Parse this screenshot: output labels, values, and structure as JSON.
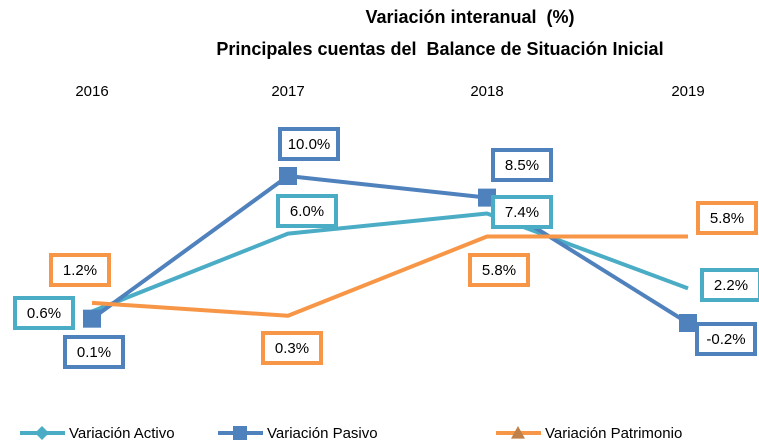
{
  "chart_data": {
    "type": "line",
    "title": [
      "Variación interanual  (%)",
      "Principales cuentas del  Balance de Situación Inicial"
    ],
    "categories": [
      "2016",
      "2017",
      "2018",
      "2019"
    ],
    "series": [
      {
        "name": "Variación Activo",
        "color": "#4bacc6",
        "marker": "diamond",
        "values": [
          0.6,
          6.0,
          7.4,
          2.2
        ],
        "value_labels": [
          "0.6%",
          "6.0%",
          "7.4%",
          "2.2%"
        ]
      },
      {
        "name": "Variación Pasivo",
        "color": "#4f81bd",
        "marker": "square",
        "values": [
          0.1,
          10.0,
          8.5,
          -0.2
        ],
        "value_labels": [
          "0.1%",
          "10.0%",
          "8.5%",
          "-0.2%"
        ]
      },
      {
        "name": "Variación Patrimonio",
        "color": "#f79646",
        "marker": "triangle",
        "values": [
          1.2,
          0.3,
          5.8,
          5.8
        ],
        "value_labels": [
          "1.2%",
          "0.3%",
          "5.8%",
          "5.8%"
        ]
      }
    ],
    "legend": "bottom"
  }
}
